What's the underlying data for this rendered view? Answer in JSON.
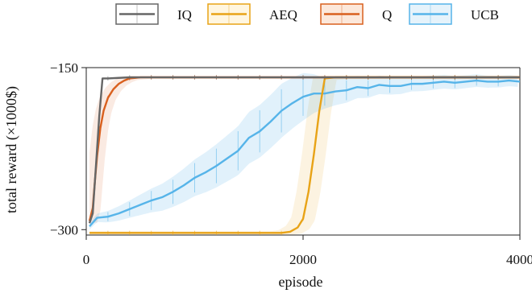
{
  "chart_data": {
    "type": "line",
    "xlabel": "episode",
    "ylabel": "total reward (×1000$)",
    "xlim": [
      0,
      4000
    ],
    "ylim": [
      -305,
      -150
    ],
    "x_ticks": [
      {
        "value": 0,
        "label": "0"
      },
      {
        "value": 2000,
        "label": "2000"
      },
      {
        "value": 4000,
        "label": "4000"
      }
    ],
    "y_ticks": [
      {
        "value": -150,
        "label": "−150"
      },
      {
        "value": -300,
        "label": "−300"
      }
    ],
    "grid": false,
    "legend_position": "top",
    "series": [
      {
        "name": "IQ",
        "color": "#666666",
        "x": [
          30,
          60,
          90,
          120,
          150,
          200,
          300,
          400,
          600,
          1000,
          2000,
          3000,
          4000
        ],
        "y": [
          -294,
          -285,
          -240,
          -195,
          -160,
          -160,
          -159.5,
          -159,
          -159,
          -159,
          -159,
          -159,
          -159
        ]
      },
      {
        "name": "AEQ",
        "color": "#E8A317",
        "band": 9,
        "x": [
          30,
          200,
          500,
          1000,
          1500,
          1800,
          1880,
          1950,
          2000,
          2050,
          2100,
          2150,
          2200,
          2300,
          3000,
          4000
        ],
        "y": [
          -303,
          -303,
          -303,
          -303,
          -303,
          -303,
          -302,
          -298,
          -290,
          -265,
          -230,
          -190,
          -160,
          -159,
          -159,
          -159
        ]
      },
      {
        "name": "Q",
        "color": "#D9601E",
        "band": 6,
        "x": [
          30,
          60,
          80,
          100,
          130,
          160,
          200,
          250,
          300,
          350,
          400,
          500,
          600,
          1000,
          2000,
          3000,
          4000
        ],
        "y": [
          -292,
          -280,
          -255,
          -232,
          -206,
          -190,
          -178,
          -170,
          -165,
          -162,
          -160,
          -159,
          -159,
          -159,
          -159,
          -159,
          -159
        ]
      },
      {
        "name": "UCB",
        "color": "#56B4E9",
        "band_x": [
          30,
          400,
          800,
          1200,
          1500,
          1800,
          2000,
          2200,
          2600,
          3000,
          3500,
          4000
        ],
        "band_w": [
          3,
          8,
          14,
          20,
          24,
          25,
          22,
          14,
          9,
          7,
          6,
          5
        ],
        "x": [
          30,
          100,
          200,
          300,
          400,
          500,
          600,
          700,
          800,
          900,
          1000,
          1100,
          1200,
          1300,
          1400,
          1500,
          1600,
          1700,
          1800,
          1900,
          2000,
          2100,
          2200,
          2300,
          2400,
          2500,
          2600,
          2700,
          2800,
          2900,
          3000,
          3100,
          3200,
          3300,
          3400,
          3500,
          3600,
          3700,
          3800,
          3900,
          4000
        ],
        "y": [
          -297,
          -289,
          -288,
          -285,
          -281,
          -277,
          -273,
          -270,
          -265,
          -259,
          -252,
          -247,
          -241,
          -234,
          -227,
          -215,
          -209,
          -200,
          -190,
          -183,
          -177,
          -174,
          -174,
          -172,
          -171,
          -168,
          -169,
          -166,
          -167,
          -167,
          -165,
          -165,
          -164,
          -163,
          -164,
          -163,
          -162,
          -163,
          -163,
          -162,
          -163
        ]
      }
    ]
  }
}
